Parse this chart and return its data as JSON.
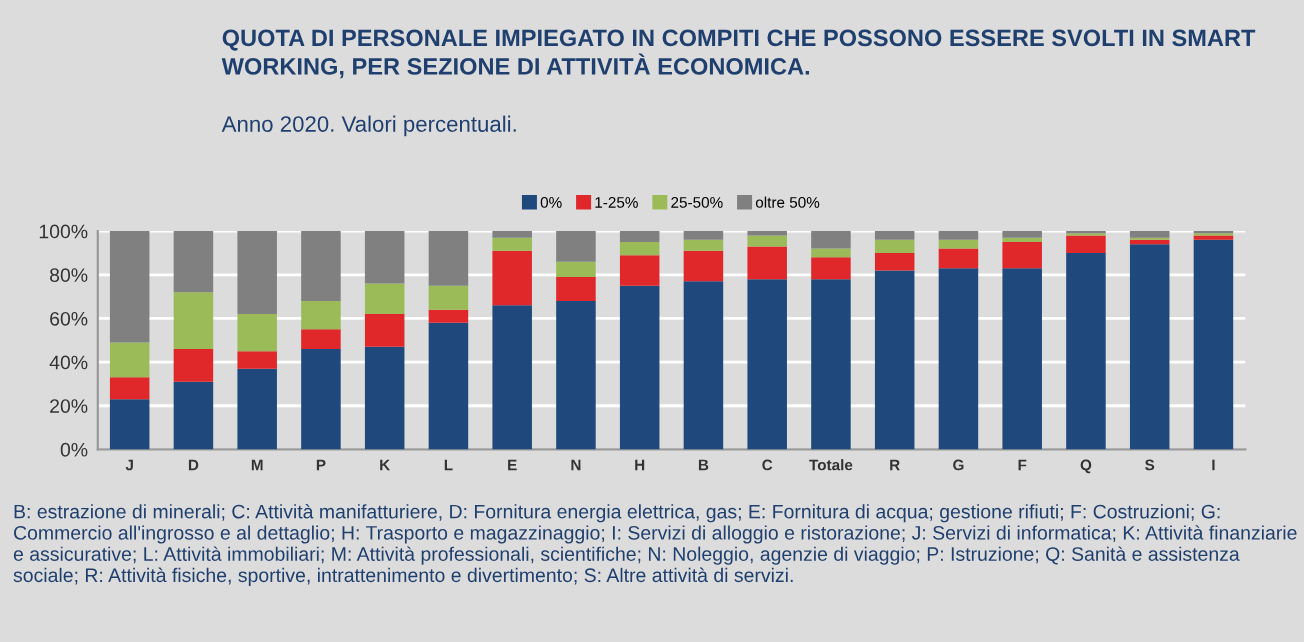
{
  "chart_data": {
    "type": "bar",
    "stacked": true,
    "title": "QUOTA DI PERSONALE IMPIEGATO IN COMPITI CHE POSSONO ESSERE SVOLTI IN SMART WORKING, PER SEZIONE DI ATTIVITÀ ECONOMICA.",
    "subtitle": "Anno 2020. Valori percentuali.",
    "categories": [
      "J",
      "D",
      "M",
      "P",
      "K",
      "L",
      "E",
      "N",
      "H",
      "B",
      "C",
      "Totale",
      "R",
      "G",
      "F",
      "Q",
      "S",
      "I"
    ],
    "series": [
      {
        "name": "0%",
        "color": "#1f497d",
        "values": [
          23,
          31,
          37,
          46,
          47,
          58,
          66,
          68,
          75,
          77,
          78,
          78,
          82,
          83,
          83,
          90,
          94,
          96
        ]
      },
      {
        "name": "1-25%",
        "color": "#e0282a",
        "values": [
          10,
          15,
          8,
          9,
          15,
          6,
          25,
          11,
          14,
          14,
          15,
          10,
          8,
          9,
          12,
          8,
          2,
          2
        ]
      },
      {
        "name": "25-50%",
        "color": "#9bbb59",
        "values": [
          16,
          26,
          17,
          13,
          14,
          11,
          6,
          7,
          6,
          5,
          5,
          4,
          6,
          4,
          2,
          1,
          1,
          1
        ]
      },
      {
        "name": "oltre 50%",
        "color": "#808080",
        "values": [
          51,
          28,
          38,
          32,
          24,
          25,
          3,
          14,
          5,
          4,
          2,
          8,
          4,
          4,
          3,
          1,
          3,
          1
        ]
      }
    ],
    "ylim": [
      0,
      100
    ],
    "yticks": [
      {
        "value": 0,
        "label": "0%"
      },
      {
        "value": 20,
        "label": "20%"
      },
      {
        "value": 40,
        "label": "40%"
      },
      {
        "value": 60,
        "label": "60%"
      },
      {
        "value": 80,
        "label": "80%"
      },
      {
        "value": 100,
        "label": "100%"
      }
    ],
    "grid": "y",
    "legend": "top",
    "annotations": [
      "B: estrazione di minerali; C: Attività manifatturiere, D: Fornitura energia elettrica, gas; E: Fornitura di acqua; gestione rifiuti; F: Costruzioni; G: Commercio all'ingrosso e al dettaglio; H: Trasporto e magazzinaggio; I: Servizi di alloggio e ristorazione; J: Servizi di informatica; K: Attività finanziarie e assicurative; L: Attività immobiliari; M: Attività professionali, scientifiche; N: Noleggio, agenzie di viaggio; P: Istruzione; Q: Sanità e assistenza sociale; R: Attività fisiche, sportive, intrattenimento e divertimento; S: Altre attività di servizi."
    ]
  }
}
